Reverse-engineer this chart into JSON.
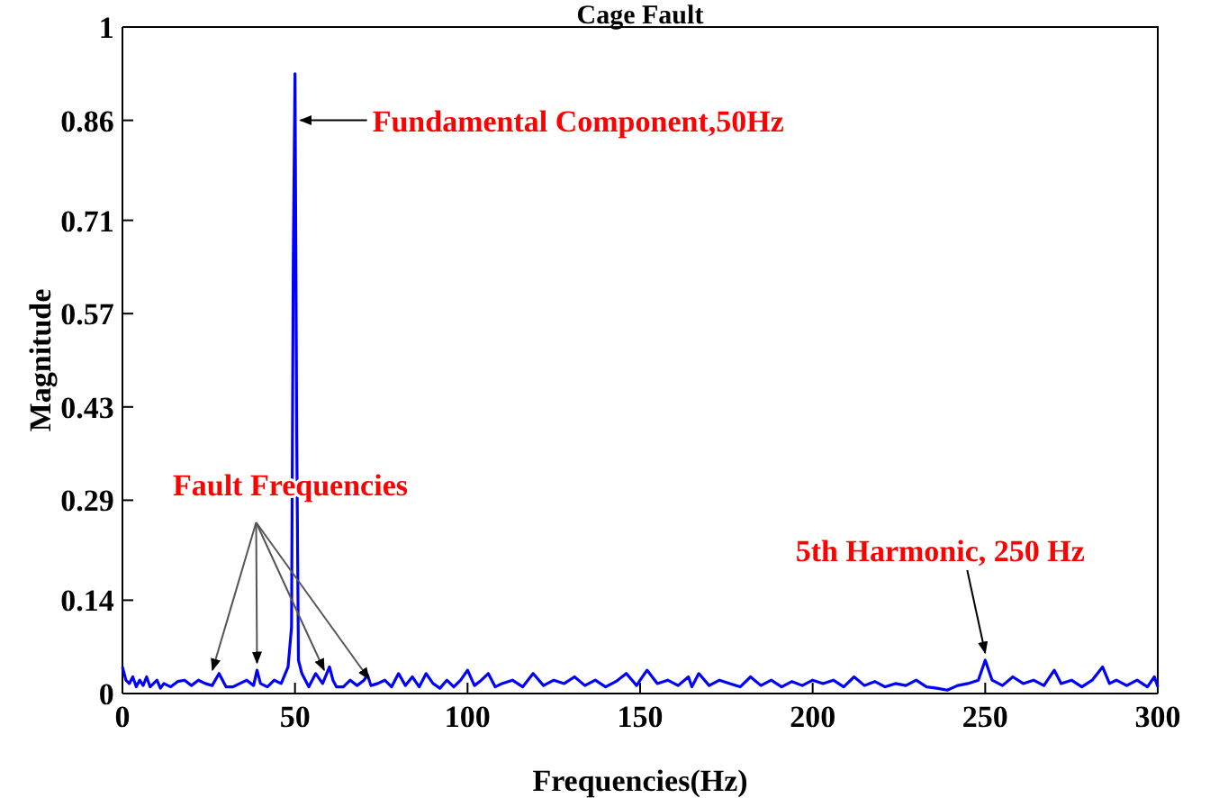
{
  "chart_data": {
    "type": "line",
    "title": "Cage Fault",
    "xlabel": "Frequencies(Hz)",
    "ylabel": "Magnitude",
    "series": [
      {
        "color": "#0000ff",
        "x": [
          0,
          1,
          2,
          3,
          4,
          5,
          6,
          7,
          8,
          10,
          11,
          12,
          14,
          16,
          18,
          20,
          22,
          24,
          26,
          28,
          30,
          32,
          34,
          36,
          38,
          39,
          40,
          42,
          44,
          46,
          48,
          49,
          49.5,
          50,
          50.5,
          51,
          52,
          53,
          54,
          56,
          58,
          60,
          61,
          62,
          64,
          66,
          68,
          70,
          71,
          72,
          74,
          76,
          78,
          80,
          82,
          84,
          86,
          88,
          90,
          92,
          94,
          96,
          98,
          100,
          102,
          104,
          106,
          108,
          110,
          113,
          116,
          119,
          122,
          125,
          128,
          131,
          134,
          137,
          140,
          143,
          146,
          149,
          150,
          152,
          155,
          158,
          161,
          164,
          165,
          167,
          170,
          173,
          176,
          179,
          182,
          185,
          188,
          191,
          194,
          197,
          200,
          203,
          206,
          209,
          212,
          215,
          218,
          221,
          224,
          227,
          230,
          233,
          236,
          239,
          242,
          245,
          248,
          250,
          252,
          255,
          258,
          261,
          264,
          267,
          270,
          272,
          275,
          278,
          281,
          284,
          286,
          288,
          291,
          294,
          297,
          299,
          300
        ],
        "values": [
          0.04,
          0.02,
          0.015,
          0.025,
          0.01,
          0.02,
          0.012,
          0.025,
          0.01,
          0.02,
          0.008,
          0.015,
          0.01,
          0.018,
          0.02,
          0.012,
          0.02,
          0.015,
          0.012,
          0.03,
          0.01,
          0.01,
          0.015,
          0.02,
          0.012,
          0.035,
          0.015,
          0.01,
          0.02,
          0.015,
          0.04,
          0.1,
          0.65,
          0.93,
          0.39,
          0.05,
          0.03,
          0.02,
          0.01,
          0.03,
          0.015,
          0.04,
          0.02,
          0.01,
          0.01,
          0.02,
          0.012,
          0.02,
          0.028,
          0.012,
          0.015,
          0.02,
          0.01,
          0.03,
          0.012,
          0.025,
          0.01,
          0.03,
          0.015,
          0.008,
          0.02,
          0.01,
          0.02,
          0.035,
          0.012,
          0.02,
          0.03,
          0.01,
          0.015,
          0.02,
          0.01,
          0.03,
          0.012,
          0.02,
          0.015,
          0.025,
          0.012,
          0.02,
          0.01,
          0.018,
          0.03,
          0.012,
          0.02,
          0.035,
          0.015,
          0.02,
          0.012,
          0.025,
          0.01,
          0.03,
          0.012,
          0.02,
          0.015,
          0.01,
          0.025,
          0.012,
          0.02,
          0.01,
          0.018,
          0.012,
          0.02,
          0.015,
          0.02,
          0.01,
          0.025,
          0.012,
          0.018,
          0.01,
          0.015,
          0.012,
          0.02,
          0.01,
          0.008,
          0.005,
          0.012,
          0.015,
          0.02,
          0.05,
          0.02,
          0.012,
          0.025,
          0.015,
          0.02,
          0.012,
          0.035,
          0.015,
          0.02,
          0.01,
          0.02,
          0.04,
          0.015,
          0.02,
          0.012,
          0.02,
          0.01,
          0.025,
          0.01
        ]
      }
    ],
    "xlim": [
      0,
      300
    ],
    "xticks": [
      0,
      50,
      100,
      150,
      200,
      250,
      300
    ],
    "ylim": [
      0,
      1
    ],
    "yticks": [
      0,
      0.14,
      0.29,
      0.43,
      0.57,
      0.71,
      0.86,
      1
    ],
    "grid": false,
    "marker": "none",
    "line_style": "solid",
    "annotations": [
      {
        "text": "Fundamental Component,50Hz",
        "x": 50,
        "y": 0.86
      },
      {
        "text": "Fault Frequencies",
        "x": 39,
        "y": 0.035
      },
      {
        "text": "5th Harmonic, 250 Hz",
        "x": 250,
        "y": 0.05
      }
    ]
  }
}
